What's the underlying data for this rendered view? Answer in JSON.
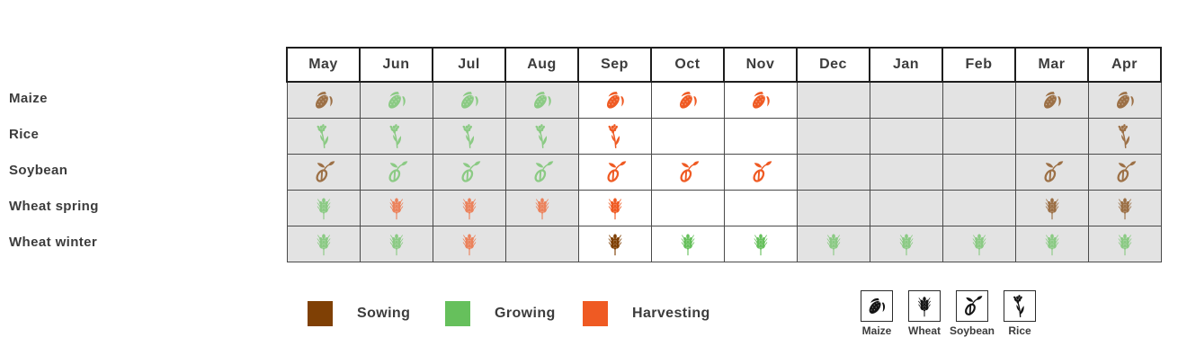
{
  "chart_data": {
    "type": "table",
    "title": "",
    "columns": [
      "May",
      "Jun",
      "Jul",
      "Aug",
      "Sep",
      "Oct",
      "Nov",
      "Dec",
      "Jan",
      "Feb",
      "Mar",
      "Apr"
    ],
    "highlight_columns": [
      "Sep",
      "Oct",
      "Nov"
    ],
    "rows": [
      {
        "crop": "Maize",
        "icon": "maize",
        "stages": [
          "sowing",
          "growing",
          "growing",
          "growing",
          "harvesting",
          "harvesting",
          "harvesting",
          null,
          null,
          null,
          "sowing",
          "sowing"
        ]
      },
      {
        "crop": "Rice",
        "icon": "rice",
        "stages": [
          "growing",
          "growing",
          "growing",
          "growing",
          "harvesting",
          null,
          null,
          null,
          null,
          null,
          null,
          "sowing"
        ]
      },
      {
        "crop": "Soybean",
        "icon": "soybean",
        "stages": [
          "sowing",
          "growing",
          "growing",
          "growing",
          "harvesting",
          "harvesting",
          "harvesting",
          null,
          null,
          null,
          "sowing",
          "sowing"
        ]
      },
      {
        "crop": "Wheat spring",
        "icon": "wheat",
        "stages": [
          "growing",
          "harvesting",
          "harvesting",
          "harvesting",
          "harvesting",
          null,
          null,
          null,
          null,
          null,
          "sowing",
          "sowing"
        ]
      },
      {
        "crop": "Wheat winter",
        "icon": "wheat",
        "stages": [
          "growing",
          "growing",
          "harvesting",
          null,
          "sowing",
          "growing",
          "growing",
          "growing",
          "growing",
          "growing",
          "growing",
          "growing"
        ]
      }
    ]
  },
  "legend": {
    "stages": [
      {
        "key": "sowing",
        "label": "Sowing",
        "color": "#7F4005"
      },
      {
        "key": "growing",
        "label": "Growing",
        "color": "#66C05C"
      },
      {
        "key": "harvesting",
        "label": "Harvesting",
        "color": "#EF5A23"
      }
    ],
    "crops": [
      {
        "icon": "maize",
        "label": "Maize"
      },
      {
        "icon": "wheat",
        "label": "Wheat"
      },
      {
        "icon": "soybean",
        "label": "Soybean"
      },
      {
        "icon": "rice",
        "label": "Rice"
      }
    ]
  },
  "colors": {
    "offseason_cell_bg": "#E3E3E3",
    "harvest_band_bg": "#FFFFFF",
    "grid_border": "#4A4A4A",
    "header_border": "#1E1E1E",
    "text": "#3C3C3C",
    "legend_icon": "#141414"
  }
}
